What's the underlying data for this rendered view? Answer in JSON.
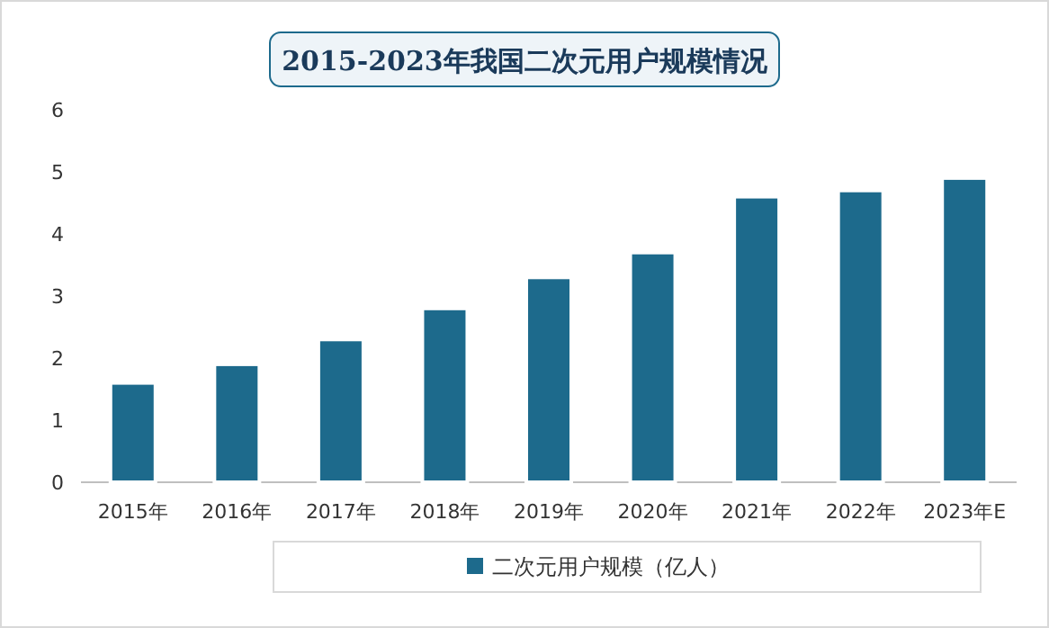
{
  "chart_data": {
    "type": "bar",
    "title": "2015-2023年我国二次元用户规模情况",
    "categories": [
      "2015年",
      "2016年",
      "2017年",
      "2018年",
      "2019年",
      "2020年",
      "2021年",
      "2022年",
      "2023年E"
    ],
    "series": [
      {
        "name": "二次元用户规模（亿人）",
        "color": "#1d6a8c",
        "values": [
          1.6,
          1.9,
          2.3,
          2.8,
          3.3,
          3.7,
          4.6,
          4.7,
          4.9
        ]
      }
    ],
    "ylim": [
      0,
      6
    ],
    "yticks": [
      0,
      1,
      2,
      3,
      4,
      5,
      6
    ],
    "legend": "bottom",
    "grid": false
  }
}
